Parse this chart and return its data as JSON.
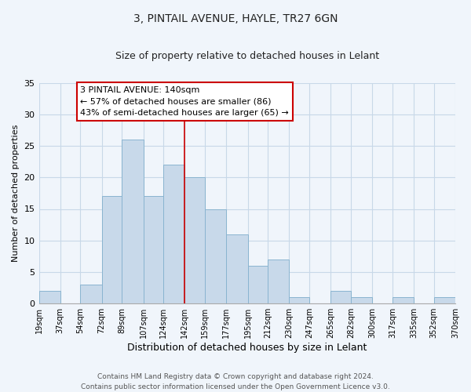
{
  "title": "3, PINTAIL AVENUE, HAYLE, TR27 6GN",
  "subtitle": "Size of property relative to detached houses in Lelant",
  "xlabel": "Distribution of detached houses by size in Lelant",
  "ylabel": "Number of detached properties",
  "bins": [
    19,
    37,
    54,
    72,
    89,
    107,
    124,
    142,
    159,
    177,
    195,
    212,
    230,
    247,
    265,
    282,
    300,
    317,
    335,
    352,
    370
  ],
  "counts": [
    2,
    0,
    3,
    17,
    26,
    17,
    22,
    20,
    15,
    11,
    6,
    7,
    1,
    0,
    2,
    1,
    0,
    1,
    0,
    1
  ],
  "bar_color": "#c8d9ea",
  "bar_edge_color": "#8ab4d0",
  "vline_x": 142,
  "vline_color": "#cc0000",
  "annotation_text": "3 PINTAIL AVENUE: 140sqm\n← 57% of detached houses are smaller (86)\n43% of semi-detached houses are larger (65) →",
  "annotation_box_color": "#ffffff",
  "annotation_box_edge": "#cc0000",
  "ylim": [
    0,
    35
  ],
  "yticks": [
    0,
    5,
    10,
    15,
    20,
    25,
    30,
    35
  ],
  "tick_labels": [
    "19sqm",
    "37sqm",
    "54sqm",
    "72sqm",
    "89sqm",
    "107sqm",
    "124sqm",
    "142sqm",
    "159sqm",
    "177sqm",
    "195sqm",
    "212sqm",
    "230sqm",
    "247sqm",
    "265sqm",
    "282sqm",
    "300sqm",
    "317sqm",
    "335sqm",
    "352sqm",
    "370sqm"
  ],
  "footer": "Contains HM Land Registry data © Crown copyright and database right 2024.\nContains public sector information licensed under the Open Government Licence v3.0.",
  "bg_color": "#f0f5fb",
  "grid_color": "#c8d8e8",
  "title_fontsize": 10,
  "subtitle_fontsize": 9,
  "annotation_fontsize": 8
}
